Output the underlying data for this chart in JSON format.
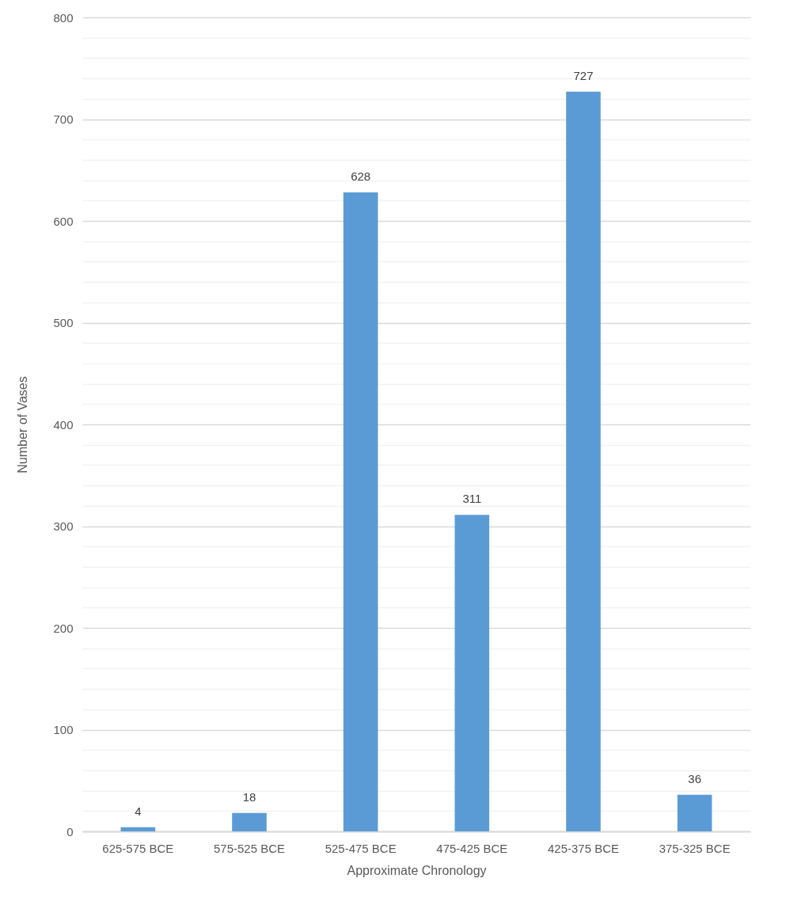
{
  "chart_data": {
    "type": "bar",
    "xlabel": "Approximate Chronology",
    "ylabel": "Number of Vases",
    "categories": [
      "625-575 BCE",
      "575-525 BCE",
      "525-475 BCE",
      "475-425 BCE",
      "425-375 BCE",
      "375-325 BCE"
    ],
    "values": [
      4,
      18,
      628,
      311,
      727,
      36
    ],
    "color": "#5b9bd5",
    "data_labels": true,
    "grid": "y",
    "ylim": [
      0,
      800
    ],
    "yticks": [
      0,
      {
        "value": 20,
        "label": null
      },
      {
        "value": 40,
        "label": null
      },
      {
        "value": 60,
        "label": null
      },
      {
        "value": 80,
        "label": null
      },
      100,
      {
        "value": 120,
        "label": null
      },
      {
        "value": 140,
        "label": null
      },
      {
        "value": 160,
        "label": null
      },
      {
        "value": 180,
        "label": null
      },
      200,
      {
        "value": 220,
        "label": null
      },
      {
        "value": 240,
        "label": null
      },
      {
        "value": 260,
        "label": null
      },
      {
        "value": 280,
        "label": null
      },
      300,
      {
        "value": 320,
        "label": null
      },
      {
        "value": 340,
        "label": null
      },
      {
        "value": 360,
        "label": null
      },
      {
        "value": 380,
        "label": null
      },
      400,
      {
        "value": 420,
        "label": null
      },
      {
        "value": 440,
        "label": null
      },
      {
        "value": 460,
        "label": null
      },
      {
        "value": 480,
        "label": null
      },
      500,
      {
        "value": 520,
        "label": null
      },
      {
        "value": 540,
        "label": null
      },
      {
        "value": 560,
        "label": null
      },
      {
        "value": 580,
        "label": null
      },
      600,
      {
        "value": 620,
        "label": null
      },
      {
        "value": 640,
        "label": null
      },
      {
        "value": 660,
        "label": null
      },
      {
        "value": 680,
        "label": null
      },
      700,
      {
        "value": 720,
        "label": null
      },
      {
        "value": 740,
        "label": null
      },
      {
        "value": 760,
        "label": null
      },
      {
        "value": 780,
        "label": null
      },
      800
    ]
  }
}
